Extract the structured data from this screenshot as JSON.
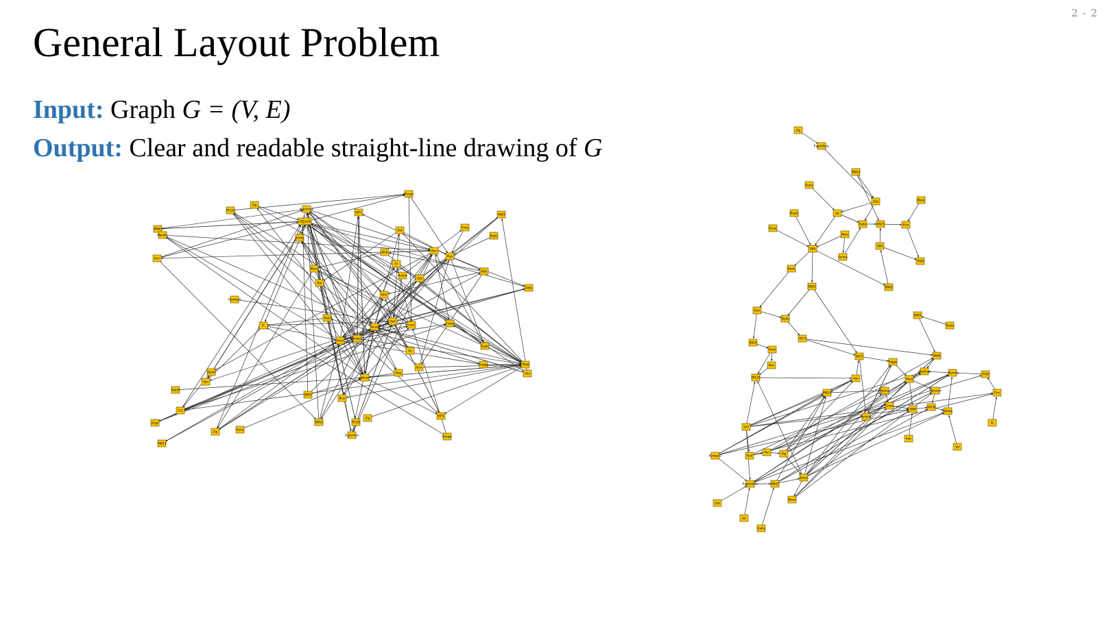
{
  "slide_number": "2 - 2",
  "title": "General Layout Problem",
  "input": {
    "label": "Input:",
    "text_before": "Graph ",
    "math": "G = (V, E)"
  },
  "output": {
    "label": "Output:",
    "text_before": "Clear and readable straight-line drawing of ",
    "math": "G"
  },
  "colors": {
    "accent": "#2f74b0",
    "node_fill": "#f5c400",
    "node_stroke": "#5a4600",
    "edge": "#333333",
    "slide_number": "#8a8a8a"
  },
  "diagram_left": {
    "description_role": "unstructured straight-line drawing",
    "nodes": [
      "TR120",
      "Zig",
      "Superman",
      "SKT1",
      "Stinger",
      "MN60",
      "Mandra",
      "HK83",
      "Cross",
      "Kagis",
      "Wave",
      "Buddy",
      "Bat",
      "Hurt",
      "Leela",
      "Dot",
      "Blob",
      "Gr",
      "Nudels",
      "Zeb",
      "Bee",
      "Plan",
      "Nick",
      "Wolf",
      "Dibb",
      "Diamond",
      "TL",
      "Stab",
      "Pend",
      "Numbers1",
      "Mouse",
      "Bolt",
      "Lane",
      "Camp",
      "Eagle",
      "Froggy",
      "TR69",
      "Viki",
      "Ho",
      "Sour",
      "Bug",
      "Sweep",
      "Zipfel",
      "Vau",
      "Goblin",
      "SN83",
      "Blue",
      "TL2",
      "Fish",
      "Orga",
      "MN23",
      "Zip",
      "Kona",
      "KW52"
    ]
  },
  "diagram_right": {
    "description_role": "clear and readable drawing",
    "nodes": [
      "Zig",
      "Ripplefluke",
      "MN22",
      "Quasi",
      "Wave",
      "Zeb",
      "Jet",
      "Gallis",
      "SN23",
      "Kvin",
      "Nudel",
      "Oscar",
      "Nero",
      "SN9",
      "SN4",
      "Kantos",
      "TR82",
      "Beak",
      "DN21",
      "DN63",
      "Fork",
      "Zipfel",
      "SN83",
      "Stabs",
      "TR77",
      "SN16",
      "Hook",
      "Mus",
      "SN37",
      "Trigger",
      "SN46",
      "Feather",
      "Numb",
      "TR99",
      "TR120",
      "Vau",
      "Hexd",
      "MN23",
      "Topless",
      "Haecksel",
      "Five",
      "Cross",
      "SNM",
      "SN100",
      "Whittle",
      "Bumper",
      "PL",
      "Knit",
      "Sol",
      "Sn5",
      "Bumper2",
      "Reef",
      "Pon"
    ]
  }
}
